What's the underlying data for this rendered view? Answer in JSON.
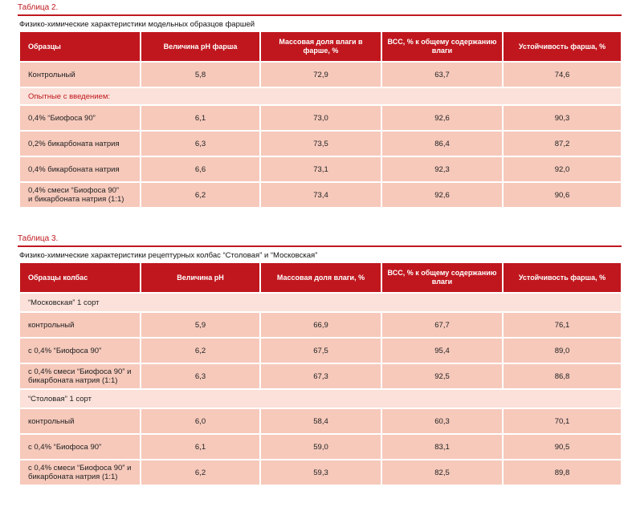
{
  "table1": {
    "caption": "Таблица 2.",
    "title": "Физико-химические характеристики модельных образцов фаршей",
    "headers": [
      "Образцы",
      "Величина  pH фарша",
      "Массовая доля  влаги в фарше, %",
      "ВСС, %  к общему содержанию влаги",
      "Устойчивость фарша, %"
    ],
    "rows": [
      {
        "type": "data",
        "cells": [
          "Контрольный",
          "5,8",
          "72,9",
          "63,7",
          "74,6"
        ]
      },
      {
        "type": "group",
        "label": "Опытные с введением:"
      },
      {
        "type": "data",
        "cells": [
          "0,4% “Биофоса 90”",
          "6,1",
          "73,0",
          "92,6",
          "90,3"
        ]
      },
      {
        "type": "data",
        "cells": [
          "0,2% бикарбоната  натрия",
          "6,3",
          "73,5",
          "86,4",
          "87,2"
        ]
      },
      {
        "type": "data",
        "cells": [
          "0,4% бикарбоната натрия",
          "6,6",
          "73,1",
          "92,3",
          "92,0"
        ]
      },
      {
        "type": "data",
        "cells": [
          "0,4% смеси “Биофоса 90”\nи бикарбоната натрия (1:1)",
          "6,2",
          "73,4",
          "92,6",
          "90,6"
        ]
      }
    ]
  },
  "table2": {
    "caption": "Таблица 3.",
    "title": "Физико-химические характеристики рецептурных колбас “Столовая” и “Московская”",
    "headers": [
      "Образцы колбас",
      "Величина pH",
      "Массовая доля влаги, %",
      "ВСС, % к общему содержанию влаги",
      "Устойчивость фарша, %"
    ],
    "rows": [
      {
        "type": "group",
        "label": "“Московская” 1 сорт"
      },
      {
        "type": "data",
        "cells": [
          "контрольный",
          "5,9",
          "66,9",
          "67,7",
          "76,1"
        ]
      },
      {
        "type": "data",
        "cells": [
          "с 0,4% “Биофоса 90”",
          "6,2",
          "67,5",
          "95,4",
          "89,0"
        ]
      },
      {
        "type": "data",
        "cells": [
          "с 0,4% смеси “Биофоса 90” и\nбикарбоната натрия (1:1)",
          "6,3",
          "67,3",
          "92,5",
          "86,8"
        ]
      },
      {
        "type": "group",
        "label": "“Столовая” 1 сорт"
      },
      {
        "type": "data",
        "cells": [
          "контрольный",
          "6,0",
          "58,4",
          "60,3",
          "70,1"
        ]
      },
      {
        "type": "data",
        "cells": [
          "с 0,4% “Биофоса 90”",
          "6,1",
          "59,0",
          "83,1",
          "90,5"
        ]
      },
      {
        "type": "data",
        "cells": [
          "с 0,4% смеси “Биофоса 90” и\nбикарбоната натрия (1:1)",
          "6,2",
          "59,3",
          "82,5",
          "89,8"
        ]
      }
    ]
  },
  "colors": {
    "accent": "#c0171e",
    "row": "#f6c9bb",
    "group_row": "#fbe1d9"
  }
}
